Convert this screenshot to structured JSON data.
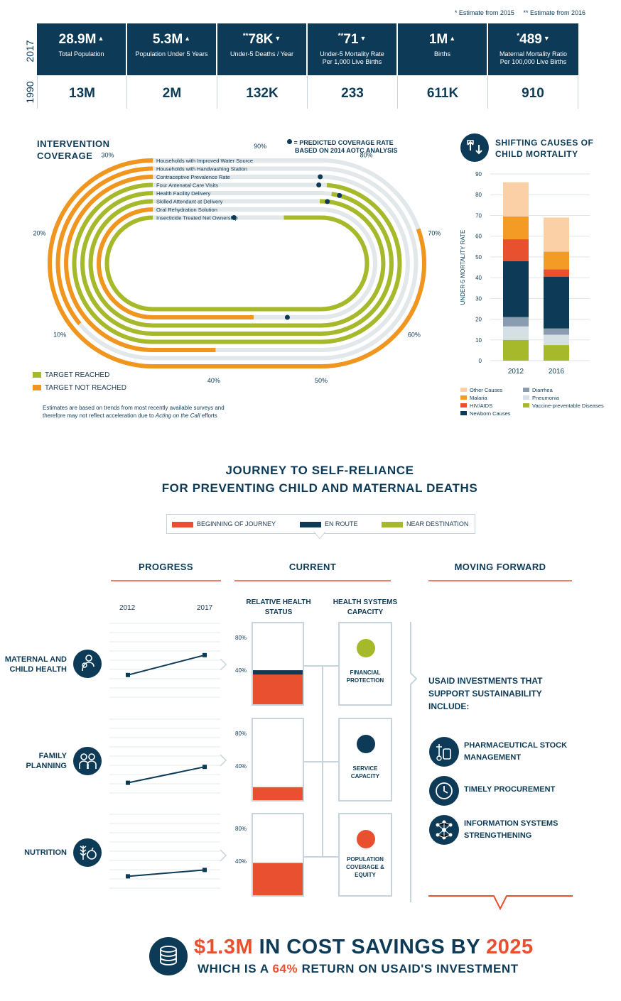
{
  "notes": {
    "n1": "* Estimate from 2015",
    "n2": "** Estimate from 2016"
  },
  "stats": {
    "year_top": "2017",
    "year_bottom": "1990",
    "items": [
      {
        "mark": "",
        "value": "28.9M",
        "arrow": "▲",
        "label": "Total Population",
        "label2": "",
        "v1990": "13M"
      },
      {
        "mark": "",
        "value": "5.3M",
        "arrow": "▲",
        "label": "Population Under 5 Years",
        "label2": "",
        "v1990": "2M"
      },
      {
        "mark": "**",
        "value": "78K",
        "arrow": "▼",
        "label": "Under-5 Deaths / Year",
        "label2": "",
        "v1990": "132K"
      },
      {
        "mark": "**",
        "value": "71",
        "arrow": "▼",
        "label": "Under-5 Mortality Rate",
        "label2": "Per 1,000 Live Births",
        "v1990": "233"
      },
      {
        "mark": "",
        "value": "1M",
        "arrow": "▲",
        "label": "Births",
        "label2": "",
        "v1990": "611K"
      },
      {
        "mark": "*",
        "value": "489",
        "arrow": "▼",
        "label": "Maternal Mortality Ratio",
        "label2": "Per 100,000 Live Births",
        "v1990": "910"
      }
    ]
  },
  "coverage": {
    "title1": "INTERVENTION",
    "title2": "COVERAGE",
    "predicted_note1": "= PREDICTED COVERAGE RATE",
    "predicted_note2": "BASED ON 2014 AOTC ANALYSIS",
    "ticks": [
      "10%",
      "20%",
      "30%",
      "40%",
      "50%",
      "60%",
      "70%",
      "80%",
      "90%"
    ],
    "legend_reached": "TARGET REACHED",
    "legend_not_reached": "TARGET NOT REACHED",
    "footnote1": "Estimates are based on trends from most recently available surveys and",
    "footnote2_pre": "therefore may not reflect acceleration due to ",
    "footnote2_em": "Acting on the Call",
    "footnote2_post": " efforts",
    "colors": {
      "reached": "#a5b92b",
      "not_reached": "#f0961e",
      "track": "#e2e7ea",
      "dot": "#0d3b57"
    }
  },
  "mortality": {
    "title1": "SHIFTING CAUSES OF",
    "title2": "CHILD MORTALITY",
    "legend": [
      {
        "name": "Other Causes",
        "color": "#fbd0a6"
      },
      {
        "name": "Malaria",
        "color": "#f39b24"
      },
      {
        "name": "HIV/AIDS",
        "color": "#e8502f"
      },
      {
        "name": "Newborn Causes",
        "color": "#0d3b57"
      },
      {
        "name": "Diarrhea",
        "color": "#8a9db0"
      },
      {
        "name": "Pneumonia",
        "color": "#d4e0e6"
      },
      {
        "name": "Vaccine-preventable Diseases",
        "color": "#a5b92b"
      }
    ]
  },
  "chart_data": [
    {
      "type": "bar",
      "title": "INTERVENTION COVERAGE",
      "categories": [
        "Households with Improved Water Source",
        "Households with Handwashing Station",
        "Contraceptive Prevalence Rate",
        "Four Antenatal Care Visits",
        "Health Facility Delivery",
        "Skilled Attendant at Delivery",
        "Oral Rehydration Solution",
        "Insecticide Treated Net Ownership"
      ],
      "series": [
        {
          "name": "Current coverage",
          "values": [
            70,
            23,
            38,
            79,
            77,
            77,
            40,
            79
          ]
        },
        {
          "name": "Target reached",
          "values": [
            false,
            false,
            false,
            true,
            true,
            true,
            false,
            true
          ]
        },
        {
          "name": "Predicted coverage",
          "values": [
            null,
            null,
            81,
            80,
            76,
            76,
            45,
            87
          ]
        }
      ],
      "xlim": [
        0,
        100
      ]
    },
    {
      "type": "bar",
      "title": "SHIFTING CAUSES OF CHILD MORTALITY",
      "ylabel": "UNDER-5 MORTALITY RATE",
      "categories": [
        "2012",
        "2016"
      ],
      "series": [
        {
          "name": "Vaccine-preventable Diseases",
          "values": [
            10,
            7.5
          ]
        },
        {
          "name": "Pneumonia",
          "values": [
            6.5,
            5
          ]
        },
        {
          "name": "Diarrhea",
          "values": [
            4.5,
            3
          ]
        },
        {
          "name": "Newborn Causes",
          "values": [
            27,
            25
          ]
        },
        {
          "name": "HIV/AIDS",
          "values": [
            10.5,
            3.5
          ]
        },
        {
          "name": "Malaria",
          "values": [
            11,
            8.5
          ]
        },
        {
          "name": "Other Causes",
          "values": [
            16.5,
            16.5
          ]
        }
      ],
      "ylim": [
        0,
        90
      ],
      "yticks": [
        "0",
        "10",
        "20",
        "30",
        "40",
        "50",
        "60",
        "70",
        "80",
        "90"
      ]
    },
    {
      "type": "line",
      "title": "PROGRESS",
      "x": [
        "2012",
        "2017"
      ],
      "series": [
        {
          "name": "MATERNAL AND CHILD HEALTH",
          "values": [
            0.35,
            0.6
          ]
        },
        {
          "name": "FAMILY PLANNING",
          "values": [
            0.2,
            0.4
          ]
        },
        {
          "name": "NUTRITION",
          "values": [
            0.22,
            0.3
          ]
        }
      ]
    },
    {
      "type": "bar",
      "title": "RELATIVE HEALTH STATUS",
      "categories": [
        "MATERNAL AND CHILD HEALTH",
        "FAMILY PLANNING",
        "NUTRITION"
      ],
      "series": [
        {
          "name": "Relative health status",
          "values": [
            42,
            16,
            40
          ]
        }
      ],
      "ylim": [
        0,
        100
      ],
      "yticks": [
        "40%",
        "80%"
      ]
    }
  ],
  "journey": {
    "title1": "JOURNEY TO SELF-RELIANCE",
    "title2": "FOR PREVENTING CHILD AND MATERNAL DEATHS",
    "legend": [
      {
        "name": "BEGINNING OF JOURNEY",
        "color": "#e8502f"
      },
      {
        "name": "EN ROUTE",
        "color": "#0d3b57"
      },
      {
        "name": "NEAR DESTINATION",
        "color": "#a5b92b"
      }
    ],
    "col_progress": "PROGRESS",
    "col_current": "CURRENT",
    "col_forward": "MOVING FORWARD",
    "year_start": "2012",
    "year_end": "2017",
    "sub_health1": "RELATIVE HEALTH",
    "sub_health2": "STATUS",
    "sub_cap1": "HEALTH SYSTEMS",
    "sub_cap2": "CAPACITY",
    "rows": [
      {
        "label1": "MATERNAL AND",
        "label2": "CHILD HEALTH",
        "cap1": "FINANCIAL",
        "cap2": "PROTECTION",
        "cap3": "",
        "cap_color": "#a5b92b",
        "status_color": "#0d3b57"
      },
      {
        "label1": "FAMILY",
        "label2": "PLANNING",
        "cap1": "SERVICE",
        "cap2": "CAPACITY",
        "cap3": "",
        "cap_color": "#0d3b57",
        "status_color": "#e8502f"
      },
      {
        "label1": "",
        "label2": "NUTRITION",
        "cap1": "POPULATION",
        "cap2": "COVERAGE &",
        "cap3": "EQUITY",
        "cap_color": "#e8502f",
        "status_color": "#e8502f"
      }
    ],
    "pct80": "80%",
    "pct40": "40%",
    "investments_title1": "USAID INVESTMENTS THAT",
    "investments_title2": "SUPPORT SUSTAINABILITY",
    "investments_title3": "INCLUDE:",
    "investments": [
      {
        "l1": "PHARMACEUTICAL STOCK",
        "l2": "MANAGEMENT",
        "icon": "pills-icon"
      },
      {
        "l1": "TIMELY PROCUREMENT",
        "l2": "",
        "icon": "clock-icon"
      },
      {
        "l1": "INFORMATION SYSTEMS",
        "l2": "STRENGTHENING",
        "icon": "network-icon"
      }
    ]
  },
  "footer": {
    "amount": "$1.3M",
    "mid": " IN COST SAVINGS BY ",
    "year": "2025",
    "line2_pre": "WHICH IS A ",
    "pct": "64%",
    "line2_post": " RETURN ON USAID'S INVESTMENT"
  }
}
